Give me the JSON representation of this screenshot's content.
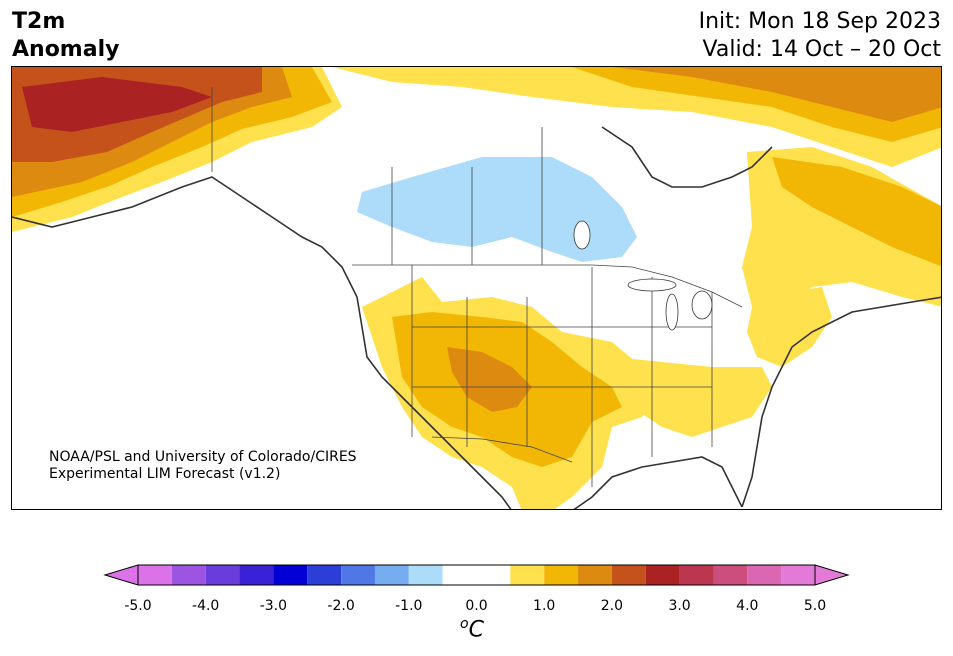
{
  "header": {
    "variable": "T2m",
    "quantity": "Anomaly",
    "init": "Init: Mon 18 Sep 2023",
    "valid": "Valid: 14 Oct – 20 Oct"
  },
  "credit": {
    "line1": "NOAA/PSL and University of Colorado/CIRES",
    "line2": "Experimental LIM Forecast (v1.2)"
  },
  "colorbar": {
    "unit_prefix": "o",
    "unit": "C",
    "ticks": [
      "-5.0",
      "-4.0",
      "-3.0",
      "-2.0",
      "-1.0",
      "0.0",
      "1.0",
      "2.0",
      "3.0",
      "4.0",
      "5.0"
    ],
    "levels": [
      -5.0,
      -4.5,
      -4.0,
      -3.5,
      -3.0,
      -2.5,
      -2.0,
      -1.5,
      -1.0,
      -0.5,
      0.5,
      1.0,
      1.5,
      2.0,
      2.5,
      3.0,
      3.5,
      4.0,
      4.5,
      5.0
    ],
    "colors": [
      "#dc72e8",
      "#9b55e0",
      "#6a3cdc",
      "#3a21d6",
      "#0000d4",
      "#2b3ed8",
      "#4f78e6",
      "#76acf0",
      "#acdcfa",
      "#ffffff",
      "#ffe04d",
      "#f2b705",
      "#dd8a10",
      "#c4521a",
      "#ab2222",
      "#bd3650",
      "#cc4e7c",
      "#db66b2",
      "#e47ad8"
    ],
    "extend_min_color": "#dc72e8",
    "extend_max_color": "#e47ad8"
  },
  "map": {
    "region": "North America",
    "fill_colors": {
      "cold1": "#acdcfa",
      "warm1": "#ffe04d",
      "warm2": "#f2b705",
      "warm3": "#dd8a10",
      "warm4": "#c4521a",
      "warm5": "#ab2222",
      "border": "#333333"
    }
  }
}
